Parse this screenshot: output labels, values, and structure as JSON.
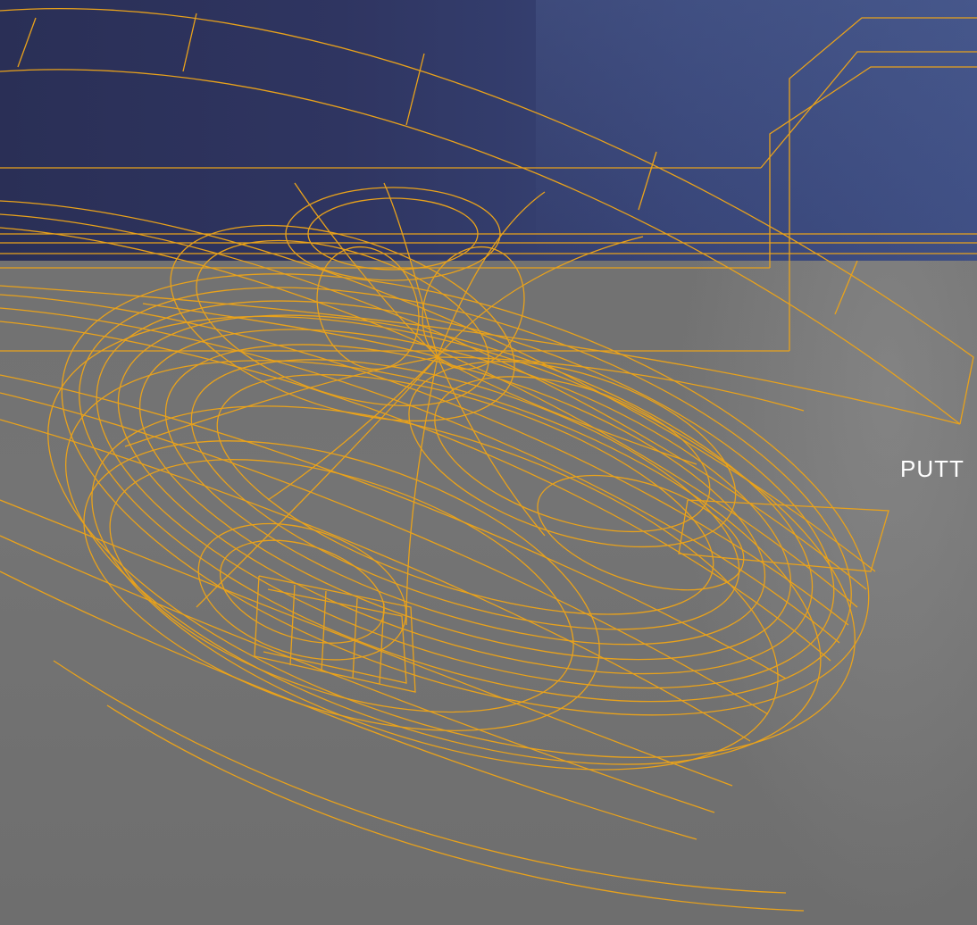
{
  "caption": {
    "text": "PUTT"
  },
  "colors": {
    "wireframe": "#e9a21b",
    "upper_band": "#2f3561",
    "lower_background": "#737373",
    "caption": "#ffffff"
  },
  "artwork": {
    "icon": "wireframe-putter-illustration-icon"
  }
}
